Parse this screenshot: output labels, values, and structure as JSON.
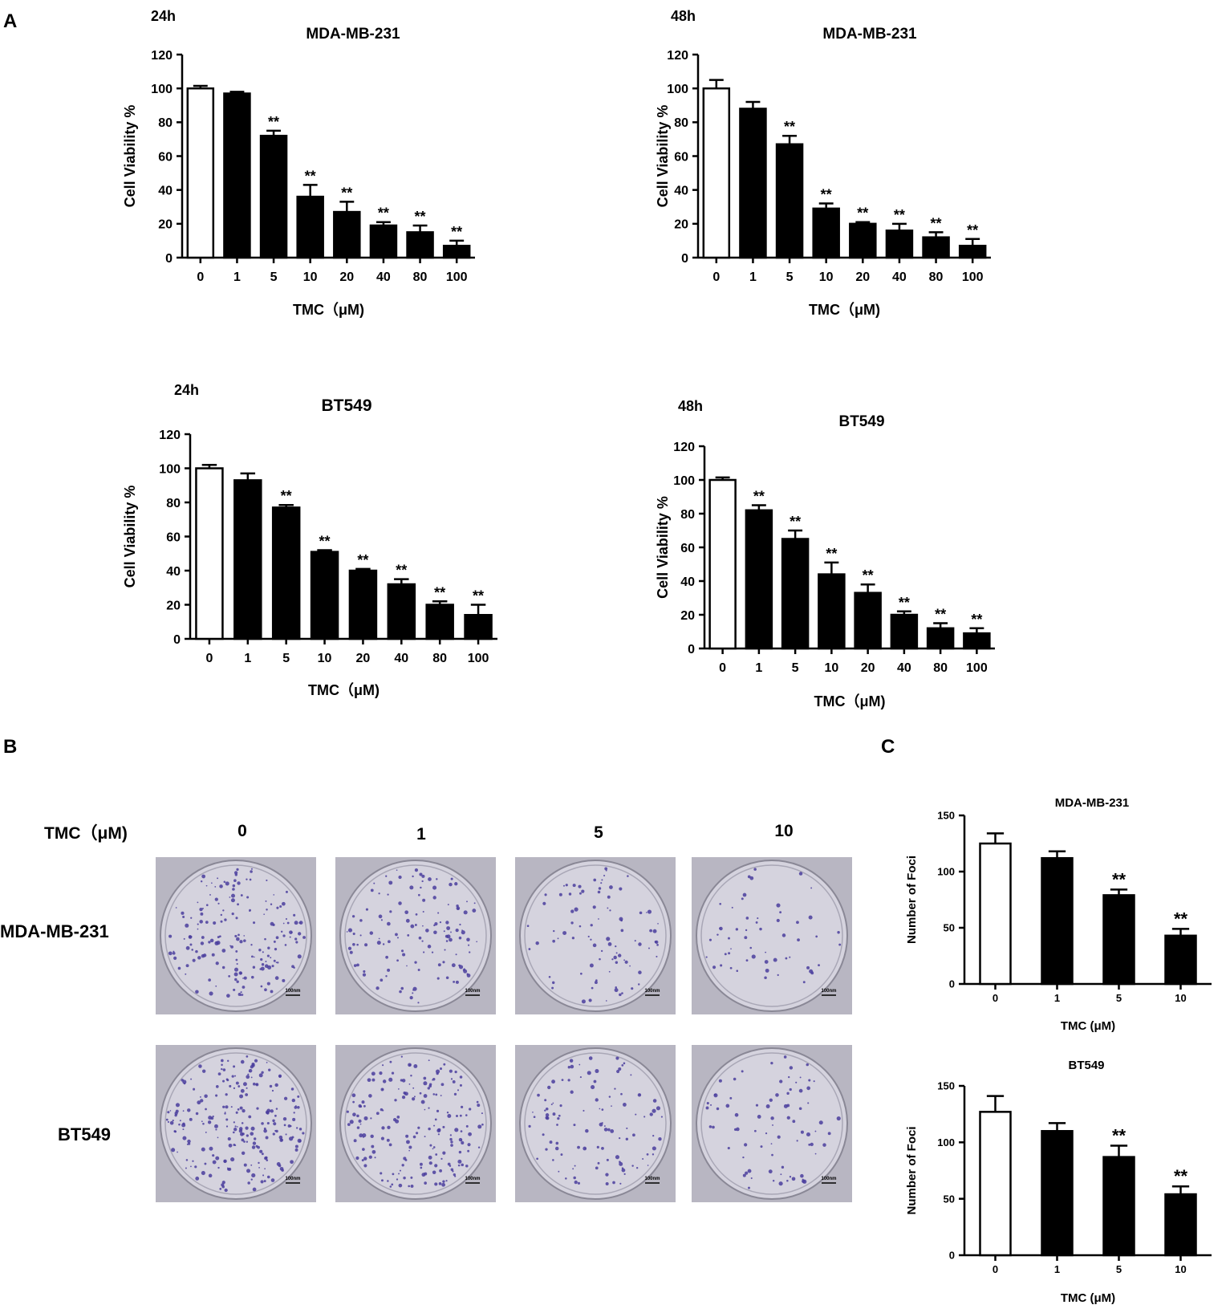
{
  "panel_labels": {
    "a": "A",
    "b": "B",
    "c": "C"
  },
  "chart_data": [
    {
      "type": "bar",
      "time_label": "24h",
      "title": "MDA-MB-231",
      "xlabel": "TMC（μM)",
      "ylabel": "Cell Viability %",
      "ylim": [
        0,
        120
      ],
      "yticks": [
        0,
        20,
        40,
        60,
        80,
        100,
        120
      ],
      "categories": [
        "0",
        "1",
        "5",
        "10",
        "20",
        "40",
        "80",
        "100"
      ],
      "values": [
        100,
        97,
        72,
        36,
        27,
        19,
        15,
        7
      ],
      "errors": [
        1.5,
        1,
        3,
        7,
        6,
        2,
        4,
        3
      ],
      "annotations": [
        "",
        "",
        "**",
        "**",
        "**",
        "**",
        "**",
        "**"
      ],
      "grid": false
    },
    {
      "type": "bar",
      "time_label": "48h",
      "title": "MDA-MB-231",
      "xlabel": "TMC（μM)",
      "ylabel": "Cell Viability %",
      "ylim": [
        0,
        120
      ],
      "yticks": [
        0,
        20,
        40,
        60,
        80,
        100,
        120
      ],
      "categories": [
        "0",
        "1",
        "5",
        "10",
        "20",
        "40",
        "80",
        "100"
      ],
      "values": [
        100,
        88,
        67,
        29,
        20,
        16,
        12,
        7
      ],
      "errors": [
        5,
        4,
        5,
        3,
        1,
        4,
        3,
        4
      ],
      "annotations": [
        "",
        "",
        "**",
        "**",
        "**",
        "**",
        "**",
        "**"
      ],
      "grid": false
    },
    {
      "type": "bar",
      "time_label": "24h",
      "title": "BT549",
      "xlabel": "TMC（μM)",
      "ylabel": "Cell Viability %",
      "ylim": [
        0,
        120
      ],
      "yticks": [
        0,
        20,
        40,
        60,
        80,
        100,
        120
      ],
      "categories": [
        "0",
        "1",
        "5",
        "10",
        "20",
        "40",
        "80",
        "100"
      ],
      "values": [
        100,
        93,
        77,
        51,
        40,
        32,
        20,
        14
      ],
      "errors": [
        2,
        4,
        1.5,
        1,
        1,
        3,
        2,
        6
      ],
      "annotations": [
        "",
        "",
        "**",
        "**",
        "**",
        "**",
        "**",
        "**"
      ],
      "grid": false
    },
    {
      "type": "bar",
      "time_label": "48h",
      "title": "BT549",
      "xlabel": "TMC（μM)",
      "ylabel": "Cell Viability %",
      "ylim": [
        0,
        120
      ],
      "yticks": [
        0,
        20,
        40,
        60,
        80,
        100,
        120
      ],
      "categories": [
        "0",
        "1",
        "5",
        "10",
        "20",
        "40",
        "80",
        "100"
      ],
      "values": [
        100,
        82,
        65,
        44,
        33,
        20,
        12,
        9
      ],
      "errors": [
        1.5,
        3,
        5,
        7,
        5,
        2,
        3,
        3
      ],
      "annotations": [
        "",
        "**",
        "**",
        "**",
        "**",
        "**",
        "**",
        "**"
      ],
      "grid": false
    },
    {
      "type": "bar",
      "title": "MDA-MB-231",
      "xlabel": "TMC (μM)",
      "ylabel": "Number of Foci",
      "ylim": [
        0,
        150
      ],
      "yticks": [
        0,
        50,
        100,
        150
      ],
      "categories": [
        "0",
        "1",
        "5",
        "10"
      ],
      "values": [
        125,
        112,
        79,
        43
      ],
      "errors": [
        9,
        6,
        5,
        6
      ],
      "annotations": [
        "",
        "",
        "**",
        "**"
      ],
      "grid": false
    },
    {
      "type": "bar",
      "title": "BT549",
      "xlabel": "TMC (μM)",
      "ylabel": "Number of Foci",
      "ylim": [
        0,
        150
      ],
      "yticks": [
        0,
        50,
        100,
        150
      ],
      "categories": [
        "0",
        "1",
        "5",
        "10"
      ],
      "values": [
        127,
        110,
        87,
        54
      ],
      "errors": [
        14,
        7,
        10,
        7
      ],
      "annotations": [
        "",
        "",
        "**",
        "**"
      ],
      "grid": false
    }
  ],
  "colony_panel": {
    "header_label": "TMC（μM)",
    "concentrations": [
      "0",
      "1",
      "5",
      "10"
    ],
    "rows": [
      "MDA-MB-231",
      "BT549"
    ],
    "scale_bar_label": "100nm",
    "colors": {
      "plate_background": "#b8b6c2",
      "plate_inner": "#d5d3de",
      "colony": "#4a3d9e"
    }
  }
}
